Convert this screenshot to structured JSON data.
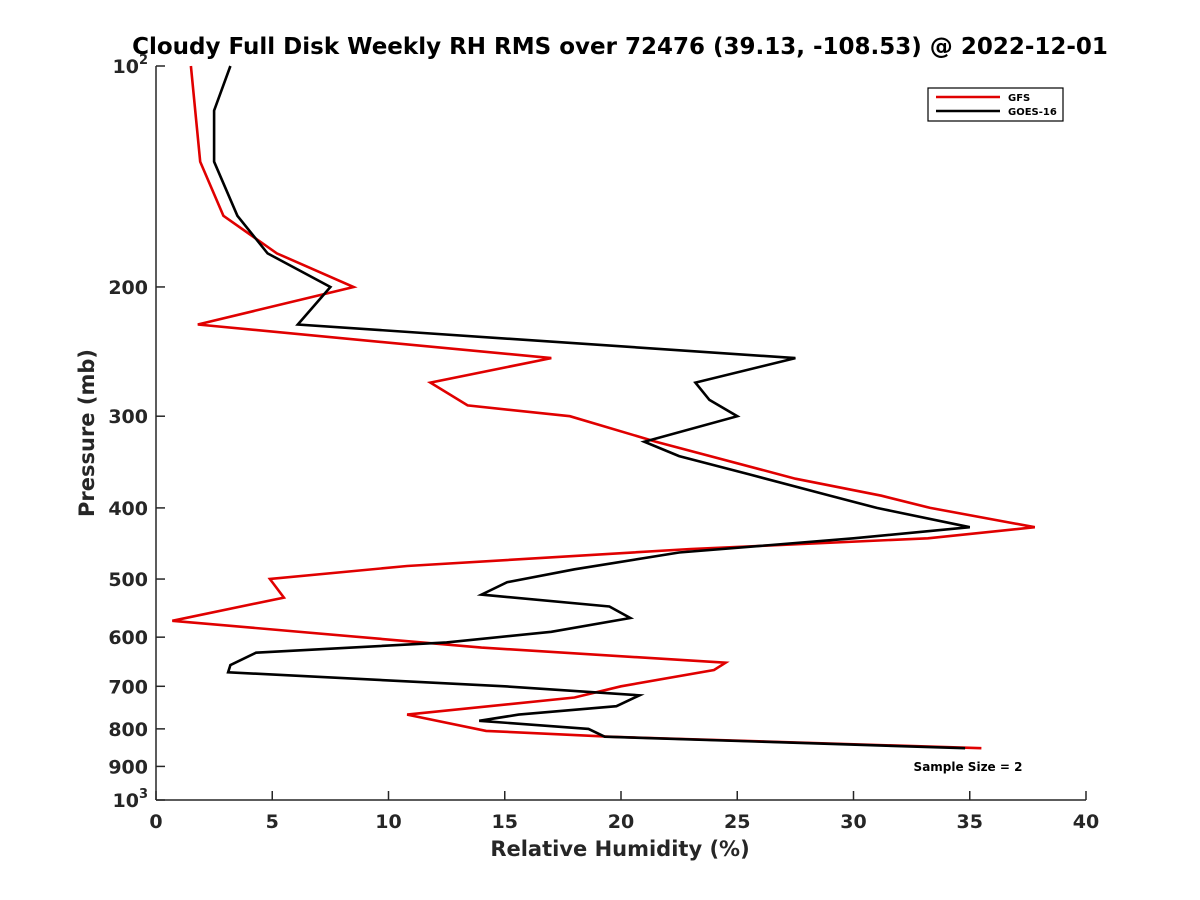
{
  "chart_data": {
    "type": "line",
    "title": "Cloudy Full Disk Weekly RH RMS over 72476 (39.13, -108.53) @ 2022-12-01",
    "xlabel": "Relative Humidity (%)",
    "ylabel": "Pressure (mb)",
    "xlim": [
      0,
      40
    ],
    "ylim": [
      100,
      1000
    ],
    "yscale": "log",
    "y_reversed": true,
    "grid": false,
    "xticks": [
      {
        "value": 0,
        "label": "0"
      },
      {
        "value": 5,
        "label": "5"
      },
      {
        "value": 10,
        "label": "10"
      },
      {
        "value": 15,
        "label": "15"
      },
      {
        "value": 20,
        "label": "20"
      },
      {
        "value": 25,
        "label": "25"
      },
      {
        "value": 30,
        "label": "30"
      },
      {
        "value": 35,
        "label": "35"
      },
      {
        "value": 40,
        "label": "40"
      }
    ],
    "yticks": [
      {
        "value": 100,
        "label": "10",
        "sup": "2"
      },
      {
        "value": 200,
        "label": "200",
        "sup": ""
      },
      {
        "value": 300,
        "label": "300",
        "sup": ""
      },
      {
        "value": 400,
        "label": "400",
        "sup": ""
      },
      {
        "value": 500,
        "label": "500",
        "sup": ""
      },
      {
        "value": 600,
        "label": "600",
        "sup": ""
      },
      {
        "value": 700,
        "label": "700",
        "sup": ""
      },
      {
        "value": 800,
        "label": "800",
        "sup": ""
      },
      {
        "value": 900,
        "label": "900",
        "sup": ""
      },
      {
        "value": 1000,
        "label": "10",
        "sup": "3"
      }
    ],
    "legend": {
      "placement": "top-right"
    },
    "series": [
      {
        "name": "GFS",
        "color": "#e00000",
        "points": [
          {
            "x": 1.5,
            "p": 100
          },
          {
            "x": 1.9,
            "p": 135
          },
          {
            "x": 2.9,
            "p": 160
          },
          {
            "x": 5.2,
            "p": 180
          },
          {
            "x": 8.5,
            "p": 200
          },
          {
            "x": 1.8,
            "p": 225
          },
          {
            "x": 17.0,
            "p": 250
          },
          {
            "x": 11.8,
            "p": 270
          },
          {
            "x": 13.4,
            "p": 290
          },
          {
            "x": 17.8,
            "p": 300
          },
          {
            "x": 21.5,
            "p": 325
          },
          {
            "x": 27.5,
            "p": 365
          },
          {
            "x": 31.2,
            "p": 385
          },
          {
            "x": 33.3,
            "p": 400
          },
          {
            "x": 37.8,
            "p": 425
          },
          {
            "x": 33.2,
            "p": 440
          },
          {
            "x": 23.0,
            "p": 455
          },
          {
            "x": 10.8,
            "p": 480
          },
          {
            "x": 4.9,
            "p": 500
          },
          {
            "x": 5.5,
            "p": 530
          },
          {
            "x": 0.7,
            "p": 570
          },
          {
            "x": 14.0,
            "p": 620
          },
          {
            "x": 24.5,
            "p": 650
          },
          {
            "x": 24.0,
            "p": 665
          },
          {
            "x": 20.0,
            "p": 700
          },
          {
            "x": 18.0,
            "p": 725
          },
          {
            "x": 10.8,
            "p": 765
          },
          {
            "x": 14.2,
            "p": 805
          },
          {
            "x": 19.5,
            "p": 820
          },
          {
            "x": 35.5,
            "p": 850
          }
        ]
      },
      {
        "name": "GOES-16",
        "color": "#000000",
        "points": [
          {
            "x": 3.2,
            "p": 100
          },
          {
            "x": 2.5,
            "p": 115
          },
          {
            "x": 2.5,
            "p": 135
          },
          {
            "x": 3.5,
            "p": 160
          },
          {
            "x": 4.8,
            "p": 180
          },
          {
            "x": 7.5,
            "p": 200
          },
          {
            "x": 6.1,
            "p": 225
          },
          {
            "x": 27.5,
            "p": 250
          },
          {
            "x": 23.2,
            "p": 270
          },
          {
            "x": 23.8,
            "p": 285
          },
          {
            "x": 25.0,
            "p": 300
          },
          {
            "x": 21.0,
            "p": 325
          },
          {
            "x": 22.5,
            "p": 340
          },
          {
            "x": 25.5,
            "p": 360
          },
          {
            "x": 29.0,
            "p": 385
          },
          {
            "x": 31.0,
            "p": 400
          },
          {
            "x": 35.0,
            "p": 425
          },
          {
            "x": 30.0,
            "p": 440
          },
          {
            "x": 22.5,
            "p": 460
          },
          {
            "x": 18.0,
            "p": 485
          },
          {
            "x": 15.1,
            "p": 505
          },
          {
            "x": 14.0,
            "p": 525
          },
          {
            "x": 19.5,
            "p": 545
          },
          {
            "x": 20.4,
            "p": 565
          },
          {
            "x": 17.0,
            "p": 590
          },
          {
            "x": 12.5,
            "p": 610
          },
          {
            "x": 4.3,
            "p": 630
          },
          {
            "x": 3.2,
            "p": 655
          },
          {
            "x": 3.1,
            "p": 670
          },
          {
            "x": 15.0,
            "p": 700
          },
          {
            "x": 20.8,
            "p": 720
          },
          {
            "x": 19.8,
            "p": 745
          },
          {
            "x": 15.6,
            "p": 765
          },
          {
            "x": 13.9,
            "p": 780
          },
          {
            "x": 18.6,
            "p": 800
          },
          {
            "x": 19.3,
            "p": 820
          },
          {
            "x": 34.8,
            "p": 850
          }
        ]
      }
    ],
    "annotation": "Sample Size = 2"
  }
}
